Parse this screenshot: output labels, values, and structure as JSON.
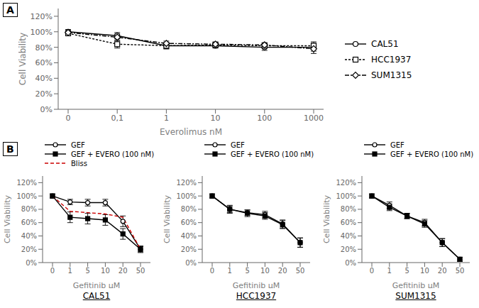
{
  "chart_data": [
    {
      "type": "line",
      "annotations": [
        "A"
      ],
      "xlabel": "Everolimus nM",
      "ylabel": "Cell Viability",
      "categories": [
        "0",
        "0,1",
        "1",
        "10",
        "100",
        "1000"
      ],
      "ylim": [
        0,
        130
      ],
      "yticks": [
        {
          "value": 0,
          "label": "0%"
        },
        {
          "value": 20,
          "label": "20%"
        },
        {
          "value": 40,
          "label": "40%"
        },
        {
          "value": 60,
          "label": "60%"
        },
        {
          "value": 80,
          "label": "80%"
        },
        {
          "value": 100,
          "label": "100%"
        },
        {
          "value": 120,
          "label": "120%"
        }
      ],
      "grid": false,
      "legend": "right",
      "series": [
        {
          "name": "CAL51",
          "color": "#000000",
          "marker": "circle_open",
          "line_style": "solid",
          "values": [
            100,
            95,
            82,
            82,
            80,
            80
          ],
          "errors": [
            3,
            4,
            4,
            3,
            4,
            5
          ]
        },
        {
          "name": "HCC1937",
          "color": "#000000",
          "marker": "square_open",
          "line_style": "dotted",
          "values": [
            98,
            84,
            82,
            83,
            82,
            82
          ],
          "errors": [
            3,
            5,
            4,
            3,
            3,
            5
          ]
        },
        {
          "name": "SUM1315",
          "color": "#000000",
          "marker": "diamond_open",
          "line_style": "dashdot",
          "values": [
            99,
            93,
            85,
            84,
            83,
            78
          ],
          "errors": [
            2,
            4,
            3,
            3,
            3,
            6
          ]
        }
      ]
    },
    {
      "type": "line",
      "annotations": [
        "B"
      ],
      "title": "CAL51",
      "xlabel": "Gefitinib μM",
      "ylabel": "Cell Viability",
      "categories": [
        "0",
        "1",
        "5",
        "10",
        "20",
        "50"
      ],
      "ylim": [
        0,
        130
      ],
      "yticks": [
        {
          "value": 0,
          "label": "0%"
        },
        {
          "value": 20,
          "label": "20%"
        },
        {
          "value": 40,
          "label": "40%"
        },
        {
          "value": 60,
          "label": "60%"
        },
        {
          "value": 80,
          "label": "80%"
        },
        {
          "value": 100,
          "label": "100%"
        },
        {
          "value": 120,
          "label": "120%"
        }
      ],
      "grid": false,
      "legend": "top",
      "series": [
        {
          "name": "GEF",
          "color": "#000000",
          "marker": "circle_open",
          "line_style": "solid",
          "values": [
            100,
            91,
            90,
            90,
            62,
            20
          ],
          "errors": [
            3,
            4,
            5,
            5,
            8,
            5
          ]
        },
        {
          "name": "GEF + EVERO (100 nM)",
          "color": "#000000",
          "marker": "square_filled",
          "line_style": "solid",
          "values": [
            100,
            68,
            66,
            64,
            43,
            20
          ],
          "errors": [
            3,
            8,
            8,
            8,
            8,
            4
          ]
        },
        {
          "name": "Bliss",
          "color": "#cc0000",
          "line_style": "dashed",
          "values": [
            100,
            77,
            75,
            73,
            68,
            20
          ]
        }
      ]
    },
    {
      "type": "line",
      "title": "HCC1937",
      "xlabel": "Gefitinib μM",
      "ylabel": "Cell Viability",
      "categories": [
        "0",
        "1",
        "5",
        "10",
        "20",
        "50"
      ],
      "ylim": [
        0,
        130
      ],
      "yticks": [
        {
          "value": 0,
          "label": "0%"
        },
        {
          "value": 20,
          "label": "20%"
        },
        {
          "value": 40,
          "label": "40%"
        },
        {
          "value": 60,
          "label": "60%"
        },
        {
          "value": 80,
          "label": "80%"
        },
        {
          "value": 100,
          "label": "100%"
        },
        {
          "value": 120,
          "label": "120%"
        }
      ],
      "grid": false,
      "legend": "top",
      "series": [
        {
          "name": "GEF",
          "color": "#000000",
          "marker": "circle_open",
          "line_style": "solid",
          "values": [
            100,
            80,
            75,
            72,
            58,
            30
          ],
          "errors": [
            3,
            5,
            4,
            5,
            6,
            7
          ]
        },
        {
          "name": "GEF + EVERO (100 nM)",
          "color": "#000000",
          "marker": "square_filled",
          "line_style": "solid",
          "values": [
            100,
            80,
            74,
            70,
            57,
            30
          ],
          "errors": [
            3,
            6,
            5,
            5,
            6,
            7
          ]
        }
      ]
    },
    {
      "type": "line",
      "title": "SUM1315",
      "xlabel": "Gefitinib μM",
      "ylabel": "Cell Viability",
      "categories": [
        "0",
        "1",
        "5",
        "10",
        "20",
        "50"
      ],
      "ylim": [
        0,
        130
      ],
      "yticks": [
        {
          "value": 0,
          "label": "0%"
        },
        {
          "value": 20,
          "label": "20%"
        },
        {
          "value": 40,
          "label": "40%"
        },
        {
          "value": 60,
          "label": "60%"
        },
        {
          "value": 80,
          "label": "80%"
        },
        {
          "value": 100,
          "label": "100%"
        },
        {
          "value": 120,
          "label": "120%"
        }
      ],
      "grid": false,
      "legend": "top",
      "series": [
        {
          "name": "GEF",
          "color": "#000000",
          "marker": "circle_open",
          "line_style": "solid",
          "values": [
            100,
            86,
            70,
            60,
            30,
            5
          ],
          "errors": [
            3,
            5,
            4,
            5,
            6,
            3
          ]
        },
        {
          "name": "GEF + EVERO (100 nM)",
          "color": "#000000",
          "marker": "square_filled",
          "line_style": "solid",
          "values": [
            100,
            83,
            70,
            58,
            30,
            5
          ],
          "errors": [
            3,
            5,
            4,
            5,
            6,
            3
          ]
        }
      ]
    }
  ]
}
